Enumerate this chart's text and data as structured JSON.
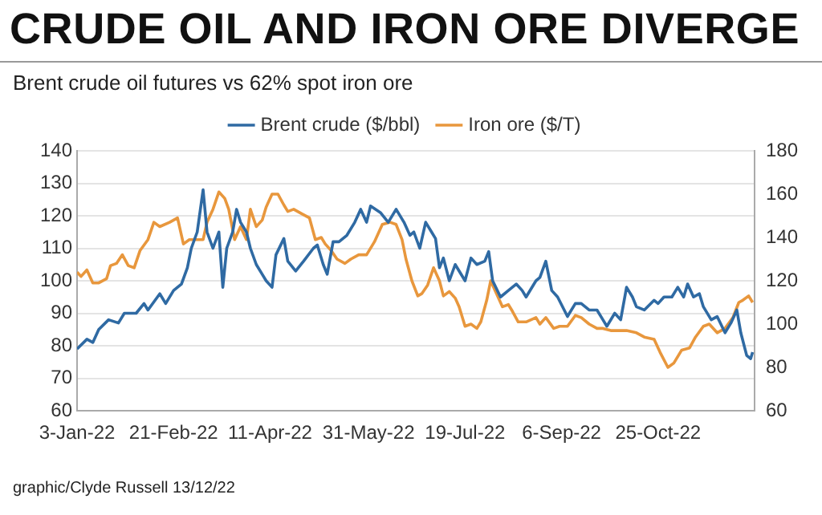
{
  "chart_data": {
    "type": "line",
    "title": "CRUDE OIL AND IRON ORE DIVERGE",
    "subtitle": "Brent crude oil futures vs 62% spot iron ore",
    "annotations": [
      "graphic/Clyde Russell 13/12/22"
    ],
    "xlim": [
      "2022-01-03",
      "2022-12-13"
    ],
    "xticks": [
      {
        "value": "2022-01-03",
        "label": "3-Jan-22"
      },
      {
        "value": "2022-02-21",
        "label": "21-Feb-22"
      },
      {
        "value": "2022-04-11",
        "label": "11-Apr-22"
      },
      {
        "value": "2022-05-31",
        "label": "31-May-22"
      },
      {
        "value": "2022-07-19",
        "label": "19-Jul-22"
      },
      {
        "value": "2022-09-06",
        "label": "6-Sep-22"
      },
      {
        "value": "2022-10-25",
        "label": "25-Oct-22"
      }
    ],
    "ylim": [
      60,
      140
    ],
    "yticks": [
      60,
      70,
      80,
      90,
      100,
      110,
      120,
      130,
      140
    ],
    "y2lim": [
      60,
      180
    ],
    "y2ticks": [
      60,
      80,
      100,
      120,
      140,
      160,
      180
    ],
    "grid": "y",
    "legend": "top",
    "marker": "none",
    "line_style": "solid",
    "series": [
      {
        "name": "Brent crude ($/bbl)",
        "color": "#2f6aa3",
        "x": [
          "2022-01-03",
          "2022-01-08",
          "2022-01-11",
          "2022-01-14",
          "2022-01-19",
          "2022-01-24",
          "2022-01-27",
          "2022-02-02",
          "2022-02-06",
          "2022-02-08",
          "2022-02-14",
          "2022-02-17",
          "2022-02-21",
          "2022-02-25",
          "2022-02-28",
          "2022-03-02",
          "2022-03-05",
          "2022-03-08",
          "2022-03-10",
          "2022-03-13",
          "2022-03-16",
          "2022-03-18",
          "2022-03-20",
          "2022-03-23",
          "2022-03-25",
          "2022-03-27",
          "2022-03-30",
          "2022-04-01",
          "2022-04-04",
          "2022-04-07",
          "2022-04-09",
          "2022-04-12",
          "2022-04-14",
          "2022-04-18",
          "2022-04-20",
          "2022-04-24",
          "2022-04-28",
          "2022-05-03",
          "2022-05-05",
          "2022-05-08",
          "2022-05-10",
          "2022-05-13",
          "2022-05-16",
          "2022-05-20",
          "2022-05-24",
          "2022-05-27",
          "2022-05-30",
          "2022-06-01",
          "2022-06-06",
          "2022-06-10",
          "2022-06-14",
          "2022-06-18",
          "2022-06-21",
          "2022-06-23",
          "2022-06-26",
          "2022-06-29",
          "2022-07-02",
          "2022-07-04",
          "2022-07-06",
          "2022-07-08",
          "2022-07-11",
          "2022-07-14",
          "2022-07-19",
          "2022-07-22",
          "2022-07-25",
          "2022-07-29",
          "2022-07-31",
          "2022-08-02",
          "2022-08-06",
          "2022-08-10",
          "2022-08-14",
          "2022-08-17",
          "2022-08-19",
          "2022-08-24",
          "2022-08-26",
          "2022-08-29",
          "2022-09-01",
          "2022-09-04",
          "2022-09-09",
          "2022-09-13",
          "2022-09-16",
          "2022-09-20",
          "2022-09-24",
          "2022-09-27",
          "2022-09-29",
          "2022-10-03",
          "2022-10-06",
          "2022-10-09",
          "2022-10-12",
          "2022-10-14",
          "2022-10-18",
          "2022-10-23",
          "2022-10-25",
          "2022-10-28",
          "2022-11-01",
          "2022-11-04",
          "2022-11-07",
          "2022-11-09",
          "2022-11-12",
          "2022-11-15",
          "2022-11-17",
          "2022-11-21",
          "2022-11-24",
          "2022-11-28",
          "2022-12-01",
          "2022-12-04",
          "2022-12-06",
          "2022-12-09",
          "2022-12-11",
          "2022-12-12"
        ],
        "values": [
          79,
          82,
          81,
          85,
          88,
          87,
          90,
          90,
          93,
          91,
          96,
          93,
          97,
          99,
          104,
          110,
          115,
          128,
          115,
          110,
          115,
          98,
          110,
          115,
          122,
          118,
          115,
          110,
          105,
          102,
          100,
          98,
          108,
          113,
          106,
          103,
          106,
          110,
          111,
          105,
          102,
          112,
          112,
          114,
          118,
          122,
          118,
          123,
          121,
          118,
          122,
          118,
          114,
          115,
          110,
          118,
          115,
          113,
          104,
          107,
          100,
          105,
          100,
          107,
          105,
          106,
          109,
          100,
          95,
          97,
          99,
          97,
          95,
          100,
          101,
          106,
          97,
          95,
          89,
          93,
          93,
          91,
          91,
          88,
          86,
          90,
          88,
          98,
          95,
          92,
          91,
          94,
          93,
          95,
          95,
          98,
          95,
          99,
          95,
          96,
          92,
          88,
          89,
          84,
          87,
          91,
          84,
          77,
          76,
          78
        ]
      },
      {
        "name": "Iron ore ($/T)",
        "color": "#e8973d",
        "axis": "y2",
        "x": [
          "2022-01-03",
          "2022-01-05",
          "2022-01-08",
          "2022-01-11",
          "2022-01-14",
          "2022-01-18",
          "2022-01-20",
          "2022-01-23",
          "2022-01-26",
          "2022-01-29",
          "2022-02-01",
          "2022-02-04",
          "2022-02-08",
          "2022-02-11",
          "2022-02-14",
          "2022-02-19",
          "2022-02-23",
          "2022-02-26",
          "2022-03-01",
          "2022-03-04",
          "2022-03-08",
          "2022-03-10",
          "2022-03-13",
          "2022-03-16",
          "2022-03-19",
          "2022-03-21",
          "2022-03-24",
          "2022-03-27",
          "2022-03-30",
          "2022-04-01",
          "2022-04-04",
          "2022-04-07",
          "2022-04-09",
          "2022-04-12",
          "2022-04-15",
          "2022-04-18",
          "2022-04-20",
          "2022-04-23",
          "2022-04-27",
          "2022-05-01",
          "2022-05-04",
          "2022-05-07",
          "2022-05-09",
          "2022-05-12",
          "2022-05-15",
          "2022-05-19",
          "2022-05-22",
          "2022-05-26",
          "2022-05-30",
          "2022-06-03",
          "2022-06-07",
          "2022-06-11",
          "2022-06-14",
          "2022-06-17",
          "2022-06-19",
          "2022-06-22",
          "2022-06-25",
          "2022-06-27",
          "2022-06-30",
          "2022-07-03",
          "2022-07-06",
          "2022-07-08",
          "2022-07-11",
          "2022-07-14",
          "2022-07-16",
          "2022-07-19",
          "2022-07-22",
          "2022-07-25",
          "2022-07-27",
          "2022-07-30",
          "2022-08-01",
          "2022-08-04",
          "2022-08-07",
          "2022-08-10",
          "2022-08-12",
          "2022-08-15",
          "2022-08-19",
          "2022-08-24",
          "2022-08-26",
          "2022-08-29",
          "2022-09-02",
          "2022-09-05",
          "2022-09-09",
          "2022-09-13",
          "2022-09-16",
          "2022-09-20",
          "2022-09-24",
          "2022-09-27",
          "2022-10-01",
          "2022-10-09",
          "2022-10-14",
          "2022-10-18",
          "2022-10-23",
          "2022-10-26",
          "2022-10-30",
          "2022-11-02",
          "2022-11-06",
          "2022-11-10",
          "2022-11-13",
          "2022-11-17",
          "2022-11-20",
          "2022-11-24",
          "2022-11-28",
          "2022-12-02",
          "2022-12-05",
          "2022-12-07",
          "2022-12-10",
          "2022-12-12"
        ],
        "values": [
          124,
          122,
          125,
          119,
          119,
          121,
          127,
          128,
          132,
          127,
          126,
          134,
          139,
          147,
          145,
          147,
          149,
          137,
          139,
          139,
          139,
          147,
          153,
          161,
          158,
          153,
          139,
          145,
          139,
          153,
          145,
          148,
          154,
          160,
          160,
          155,
          152,
          153,
          151,
          149,
          139,
          140,
          137,
          134,
          130,
          128,
          130,
          132,
          132,
          138,
          146,
          147,
          146,
          139,
          130,
          120,
          113,
          114,
          118,
          126,
          120,
          113,
          115,
          112,
          108,
          99,
          100,
          98,
          101,
          111,
          120,
          114,
          108,
          109,
          106,
          101,
          101,
          103,
          100,
          103,
          98,
          99,
          99,
          104,
          103,
          100,
          98,
          98,
          97,
          97,
          96,
          94,
          93,
          87,
          80,
          82,
          88,
          89,
          94,
          99,
          100,
          96,
          98,
          103,
          110,
          111,
          113,
          110
        ]
      }
    ]
  }
}
